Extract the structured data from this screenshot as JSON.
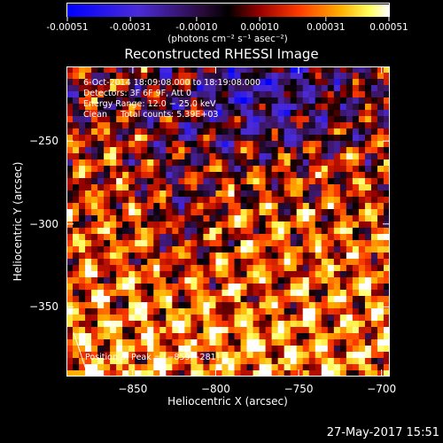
{
  "colorbar": {
    "units": "(photons cm⁻² s⁻¹ asec⁻²)",
    "tick_labels": [
      "-0.00051",
      "-0.00031",
      "-0.00010",
      "0.00010",
      "0.00031",
      "0.00051"
    ],
    "tick_values": [
      -0.00051,
      -0.00031,
      -0.0001,
      0.0001,
      0.00031,
      0.00051
    ],
    "range": [
      -0.00051,
      0.00051
    ]
  },
  "chart_data": {
    "type": "heatmap",
    "title": "Reconstructed RHESSI Image",
    "xlabel": "Heliocentric X (arcsec)",
    "ylabel": "Heliocentric Y (arcsec)",
    "xlim": [
      -890,
      -695
    ],
    "ylim": [
      -392,
      -205
    ],
    "xticks": [
      -850,
      -800,
      -750,
      -700
    ],
    "yticks": [
      -250,
      -300,
      -350
    ],
    "xtick_labels": [
      "−850",
      "−800",
      "−750",
      "−700"
    ],
    "ytick_labels": [
      "−250",
      "−300",
      "−350"
    ],
    "grid": false,
    "colormap": "blue-purple-black-red-yellow-white",
    "peak_position": [
      -859,
      -281
    ]
  },
  "annotations": {
    "time_range": "6-Oct-2014 18:09:08.000 to 18:19:08.000",
    "detectors": "Detectors: 3F 6F 9F, Att 0",
    "energy": "Energy Range: 12.0 − 25.0 keV",
    "method": "Clean     Total counts: 5.39E+03",
    "peak": "Position of Peak = [−859,−281]"
  },
  "footer": "27-May-2017 15:51"
}
